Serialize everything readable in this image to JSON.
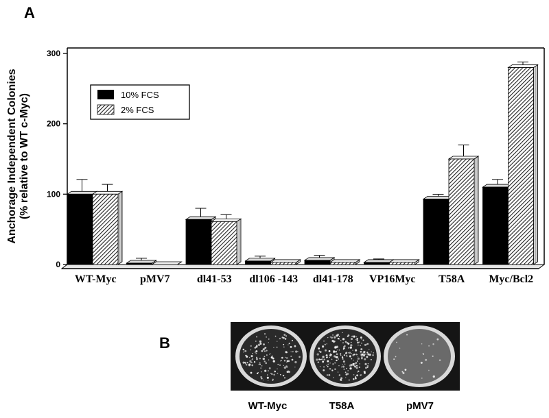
{
  "panels": {
    "a": "A",
    "b": "B"
  },
  "chart_data": {
    "type": "bar",
    "ylabel_line1": "Anchorage Independent Colonies",
    "ylabel_line2": "(% relative to WT c-Myc)",
    "ylim": [
      0,
      300
    ],
    "yticks": [
      0,
      100,
      200,
      300
    ],
    "categories": [
      "WT-Myc",
      "pMV7",
      "dl41-53",
      "dl106 -143",
      "dl41-178",
      "VP16Myc",
      "T58A",
      "Myc/Bcl2"
    ],
    "series": [
      {
        "name": "10% FCS",
        "fill": "solid",
        "color": "#000000",
        "values": [
          100,
          2,
          64,
          5,
          6,
          3,
          93,
          110
        ],
        "errors": [
          17,
          3,
          12,
          3,
          3,
          1,
          3,
          7
        ]
      },
      {
        "name": "2% FCS",
        "fill": "hatched",
        "color": "#555555",
        "values": [
          100,
          0,
          61,
          3,
          3,
          3,
          150,
          280
        ],
        "errors": [
          10,
          0,
          6,
          0,
          0,
          0,
          16,
          4
        ]
      }
    ],
    "grid": false,
    "legend_position": "top-left"
  },
  "plates": {
    "labels": [
      "WT-Myc",
      "T58A",
      "pMV7"
    ],
    "colony_density": [
      0.55,
      0.85,
      0.08
    ]
  }
}
